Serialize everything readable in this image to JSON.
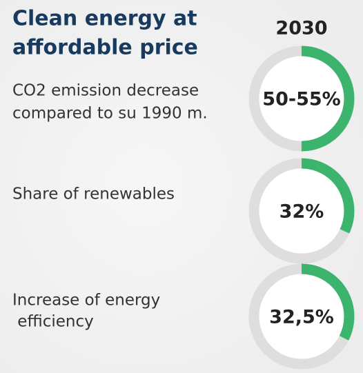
{
  "header": {
    "title": [
      "Clean energy at",
      "affordable price"
    ],
    "year": "2030"
  },
  "items": [
    {
      "text": [
        "CO2 emission decrease",
        "compared to su 1990 m."
      ],
      "value": 50,
      "value_label": "50-55%"
    },
    {
      "text": [
        "Share of renewables"
      ],
      "value": 32,
      "value_label": "32%"
    },
    {
      "text": [
        "Increase of energy",
        " efficiency"
      ],
      "value": 32.5,
      "value_label": "32,5%"
    }
  ],
  "color": "#3cb46e",
  "track_color": "#dedede"
}
